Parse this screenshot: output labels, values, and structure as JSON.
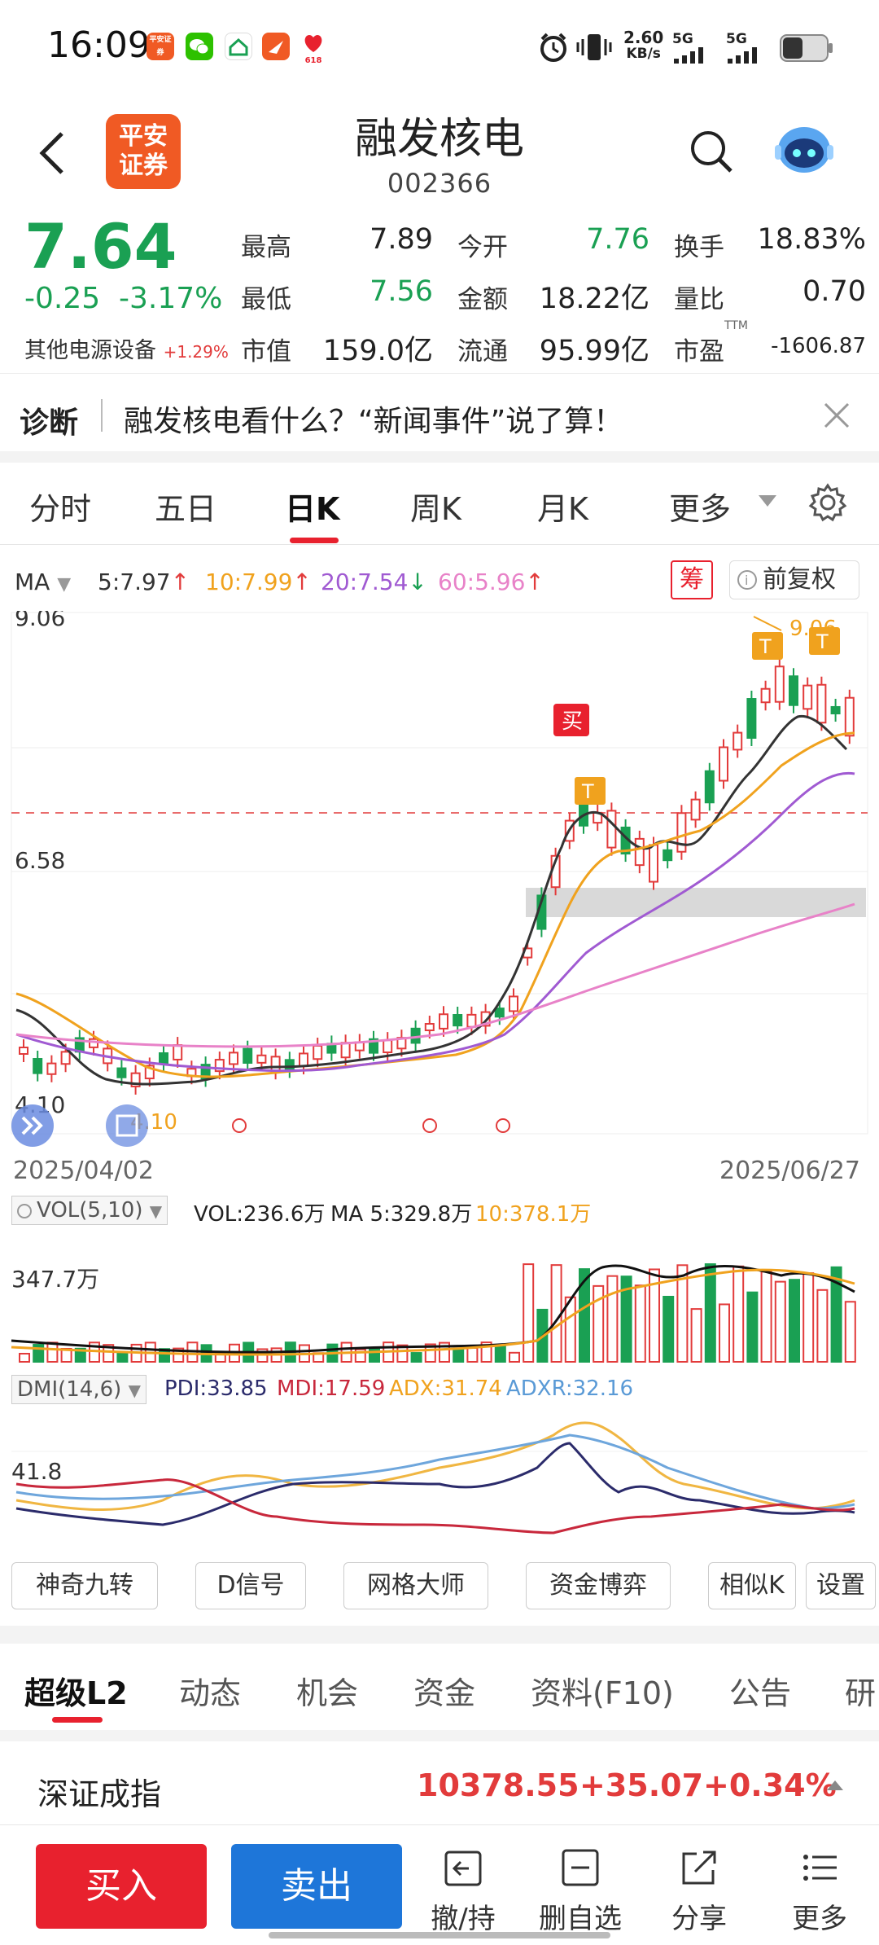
{
  "status_bar": {
    "time": "16:09",
    "speed_value": "2.60",
    "speed_unit": "KB/s",
    "net1": "5G",
    "net2": "5G",
    "app_icons": [
      "pingan-securities-icon",
      "wechat-icon",
      "home-app-icon",
      "send-app-icon",
      "jd-618-icon"
    ],
    "pingan_icon_text": "平安证券",
    "jd_badge": "618"
  },
  "header": {
    "logo_text": "平安证券",
    "title": "融发核电",
    "code": "002366"
  },
  "quote": {
    "price": "7.64",
    "change": "-0.25",
    "change_pct": "-3.17%",
    "sector": "其他电源设备",
    "sector_pct": "+1.29%",
    "fields": [
      {
        "label": "最高",
        "value": "7.89"
      },
      {
        "label": "今开",
        "value": "7.76"
      },
      {
        "label": "换手",
        "value": "18.83%"
      },
      {
        "label": "最低",
        "value": "7.56"
      },
      {
        "label": "金额",
        "value": "18.22亿"
      },
      {
        "label": "量比",
        "value": "0.70"
      },
      {
        "label": "市值",
        "value": "159.0亿"
      },
      {
        "label": "流通",
        "value": "95.99亿"
      },
      {
        "label": "市盈",
        "value": "-1606.87",
        "sup": "TTM"
      }
    ]
  },
  "diagnosis": {
    "label": "诊断",
    "text": "融发核电看什么？“新闻事件”说了算！"
  },
  "tabs": [
    "分时",
    "五日",
    "日K",
    "周K",
    "月K",
    "更多"
  ],
  "active_tab": "日K",
  "ma": {
    "label": "MA",
    "ma5": "5:7.97",
    "ma10": "10:7.99",
    "ma20": "20:7.54",
    "ma60": "60:5.96",
    "arrow_up": "↑",
    "arrow_down": "↓",
    "chou": "筹",
    "fuquan": "前复权"
  },
  "chart_data": {
    "type": "candlestick",
    "y_ticks": [
      "9.06",
      "6.58",
      "4.10"
    ],
    "ylim": [
      4.1,
      9.06
    ],
    "x_start": "2025/04/02",
    "x_end": "2025/06/27",
    "low_label": "4.10",
    "high_label": "9.06",
    "markers": [
      "买",
      "T",
      "T",
      "T"
    ],
    "ma_colors": {
      "ma5": "#333333",
      "ma10": "#f0a21e",
      "ma20": "#a05ad2",
      "ma60": "#e882c8"
    }
  },
  "vol": {
    "label": "VOL(5,10)",
    "vol": "VOL:236.6万",
    "ma5": "MA 5:329.8万",
    "ma10": "10:378.1万",
    "axis": "347.7万"
  },
  "dmi": {
    "label": "DMI(14,6)",
    "pdi": "PDI:33.85",
    "mdi": "MDI:17.59",
    "adx": "ADX:31.74",
    "adxr": "ADXR:32.16",
    "axis": "41.8"
  },
  "tools": [
    "神奇九转",
    "D信号",
    "网格大师",
    "资金博弈",
    "相似K",
    "设置"
  ],
  "bottom_tabs": [
    "超级L2",
    "动态",
    "机会",
    "资金",
    "资料(F10)",
    "公告",
    "研"
  ],
  "index": {
    "name": "深证成指",
    "value": "10378.55",
    "change": "+35.07",
    "pct": "+0.34%"
  },
  "actions": {
    "buy": "买入",
    "sell": "卖出",
    "cancel": "撤/持",
    "del_fav": "删自选",
    "share": "分享",
    "more": "更多"
  }
}
